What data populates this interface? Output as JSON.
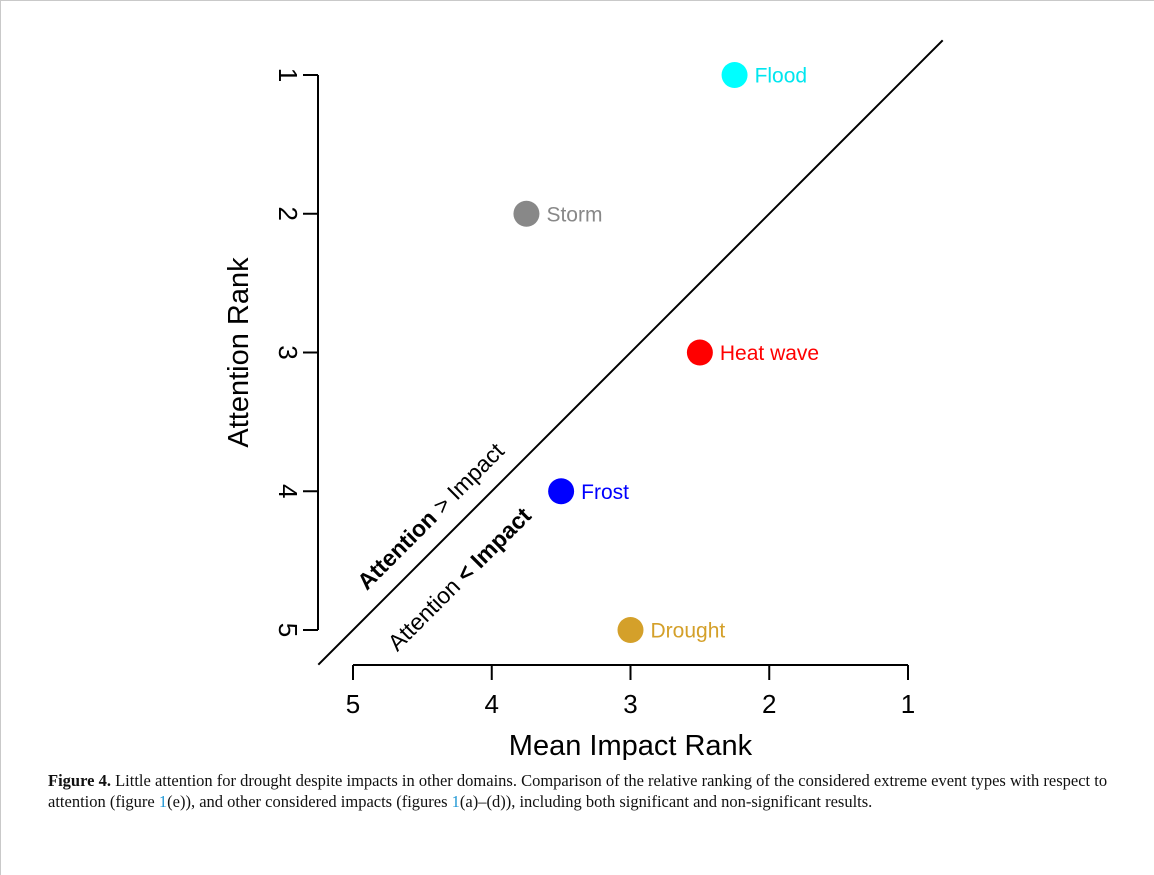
{
  "chart_data": {
    "type": "scatter",
    "xlabel": "Mean Impact Rank",
    "ylabel": "Attention Rank",
    "xlim": [
      5,
      1
    ],
    "ylim": [
      5,
      1
    ],
    "x_ticks": [
      "5",
      "4",
      "3",
      "2",
      "1"
    ],
    "y_ticks": [
      "1",
      "2",
      "3",
      "4",
      "5"
    ],
    "grid": false,
    "diagonal_line": "y = x",
    "points": [
      {
        "name": "Flood",
        "x": 2.25,
        "y": 1,
        "color": "#00ffff"
      },
      {
        "name": "Storm",
        "x": 3.75,
        "y": 2,
        "color": "#888888"
      },
      {
        "name": "Heat wave",
        "x": 2.5,
        "y": 3,
        "color": "#ff0000"
      },
      {
        "name": "Frost",
        "x": 3.5,
        "y": 4,
        "color": "#0000ff"
      },
      {
        "name": "Drought",
        "x": 3.0,
        "y": 5,
        "color": "#d4a02a"
      }
    ],
    "annotations": {
      "upper": {
        "bold": "Attention",
        "rest": " > Impact"
      },
      "lower": {
        "normal": "Attention ",
        "bold": "< Impact"
      }
    }
  },
  "caption": {
    "figure_label": "Figure 4.",
    "text_1": " Little attention for drought despite impacts in other domains. Comparison of the relative ranking of the considered extreme event types with respect to attention (figure ",
    "ref_1": "1",
    "text_2": "(e)), and other considered impacts (figures ",
    "ref_2": "1",
    "text_3": "(a)–(d)), including both significant and non-significant results."
  }
}
